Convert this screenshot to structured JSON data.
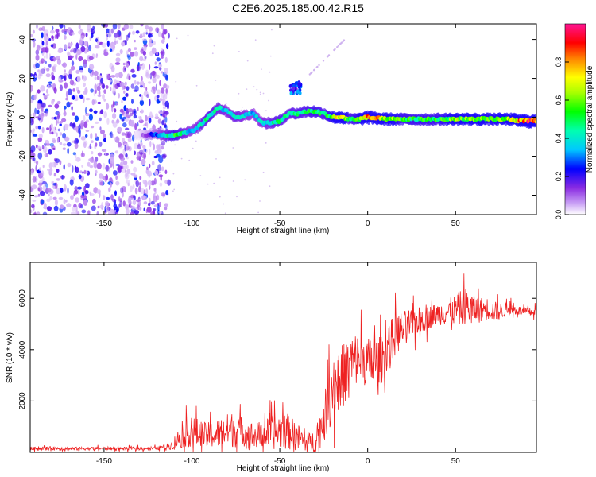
{
  "title": "C2E6.2025.185.00.42.R15",
  "colors": {
    "snr_line": "#ee2222",
    "frame": "#000000",
    "spectrogram_background": "#ffffff",
    "colormap": [
      "#ffffff",
      "#8a2be2",
      "#0000ff",
      "#00ffff",
      "#00ff00",
      "#ffff00",
      "#ff0000",
      "#ff1493"
    ]
  },
  "chart_data": [
    {
      "type": "heatmap",
      "xlabel": "Height of straight line (km)",
      "ylabel": "Frequency (Hz)",
      "xlim": [
        -192,
        96
      ],
      "ylim": [
        -50,
        48
      ],
      "x_ticks": [
        "-150",
        "-100",
        "-50",
        "0",
        "50"
      ],
      "x_tick_values": [
        -150,
        -100,
        -50,
        0,
        50
      ],
      "y_ticks": [
        "40",
        "20",
        "0",
        "-20",
        "-40"
      ],
      "y_tick_values": [
        40,
        20,
        0,
        -20,
        -40
      ],
      "colorbar": {
        "label": "Normalized spectral amplitude",
        "range": [
          0,
          1
        ],
        "ticks": [
          "0.0",
          "0.2",
          "0.4",
          "0.6",
          "0.8"
        ],
        "tick_values": [
          0.0,
          0.2,
          0.4,
          0.6,
          0.8
        ]
      },
      "ridge": {
        "x": [
          -130,
          -120,
          -110,
          -100,
          -95,
          -90,
          -85,
          -80,
          -75,
          -70,
          -65,
          -60,
          -55,
          -50,
          -45,
          -40,
          -35,
          -30,
          -25,
          -20,
          -15,
          -10,
          -5,
          0,
          10,
          20,
          30,
          40,
          50,
          60,
          70,
          80,
          90,
          95
        ],
        "freq": [
          -9,
          -9,
          -9,
          -7,
          -4,
          1,
          5,
          3,
          0,
          1,
          2,
          -3,
          -3,
          -2,
          2,
          2,
          3,
          3,
          2,
          0,
          0,
          -1,
          -1,
          0,
          -1,
          -1,
          -1,
          -1,
          -1,
          -1,
          -1,
          -1,
          -2,
          -2
        ],
        "amplitude": [
          0.05,
          0.3,
          0.55,
          0.35,
          0.45,
          0.5,
          0.45,
          0.4,
          0.45,
          0.4,
          0.35,
          0.4,
          0.45,
          0.5,
          0.45,
          0.5,
          0.5,
          0.55,
          0.5,
          0.6,
          0.85,
          0.5,
          0.6,
          0.9,
          0.7,
          0.55,
          0.55,
          0.55,
          0.65,
          0.65,
          0.6,
          0.65,
          0.95,
          0.9
        ]
      },
      "noise_region_x": [
        -192,
        -113
      ]
    },
    {
      "type": "line",
      "xlabel": "Height of straight line (km)",
      "ylabel": "SNR (10 * v/v)",
      "xlim": [
        -192,
        96
      ],
      "ylim": [
        0,
        7400
      ],
      "x_ticks": [
        "-150",
        "-100",
        "-50",
        "0",
        "50"
      ],
      "x_tick_values": [
        -150,
        -100,
        -50,
        0,
        50
      ],
      "y_ticks": [
        "6000",
        "4000",
        "2000"
      ],
      "y_tick_values": [
        6000,
        4000,
        2000
      ],
      "series": [
        {
          "x": [
            -192,
            -180,
            -170,
            -160,
            -150,
            -140,
            -130,
            -120,
            -112,
            -108,
            -104,
            -100,
            -96,
            -92,
            -88,
            -84,
            -80,
            -76,
            -72,
            -68,
            -64,
            -60,
            -56,
            -52,
            -48,
            -44,
            -40,
            -36,
            -32,
            -28,
            -24,
            -20,
            -16,
            -12,
            -8,
            -4,
            0,
            4,
            8,
            12,
            16,
            20,
            24,
            28,
            32,
            36,
            40,
            44,
            48,
            52,
            56,
            60,
            64,
            68,
            72,
            76,
            80,
            84,
            88,
            92,
            96
          ],
          "values": [
            150,
            160,
            140,
            150,
            150,
            140,
            150,
            160,
            250,
            500,
            700,
            800,
            750,
            650,
            700,
            750,
            850,
            900,
            800,
            700,
            650,
            700,
            750,
            800,
            900,
            750,
            600,
            400,
            350,
            700,
            1500,
            2500,
            2800,
            3200,
            3600,
            3700,
            3500,
            3500,
            3600,
            4200,
            4600,
            4800,
            5000,
            5100,
            5200,
            5300,
            5400,
            5450,
            5500,
            5600,
            5700,
            5600,
            5550,
            5600,
            5500,
            5500,
            5600,
            5550,
            5500,
            5450,
            5500
          ],
          "noise_amp": [
            120,
            120,
            120,
            120,
            120,
            120,
            120,
            120,
            250,
            700,
            900,
            1100,
            1000,
            900,
            1000,
            1100,
            1200,
            1300,
            1100,
            1000,
            900,
            1000,
            1100,
            1300,
            1400,
            1200,
            1000,
            800,
            700,
            1200,
            1800,
            2300,
            2400,
            2200,
            2000,
            1800,
            1800,
            1800,
            1700,
            1600,
            1500,
            1300,
            1100,
            1000,
            900,
            800,
            800,
            900,
            1000,
            1200,
            1300,
            1100,
            900,
            800,
            700,
            600,
            500,
            400,
            300,
            300,
            300
          ]
        }
      ]
    }
  ]
}
